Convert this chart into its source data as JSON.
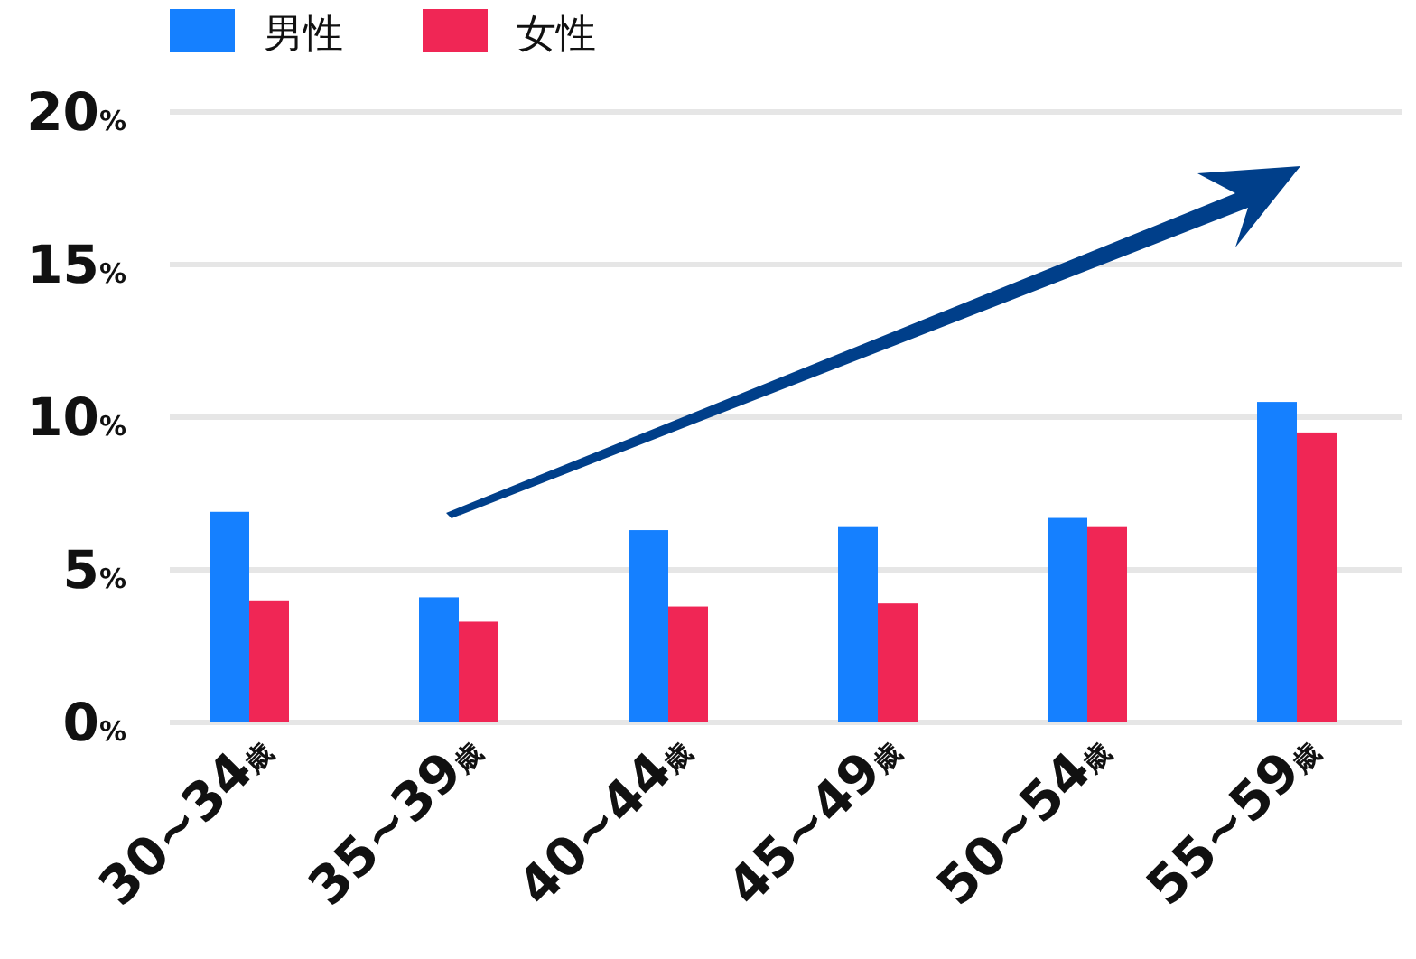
{
  "chart_data": {
    "type": "bar",
    "categories": [
      "30~34歳",
      "35~39歳",
      "40~44歳",
      "45~49歳",
      "50~54歳",
      "55~59歳"
    ],
    "series": [
      {
        "name": "男性",
        "color": "#1580ff",
        "values": [
          6.9,
          4.1,
          6.3,
          6.4,
          6.7,
          10.5
        ]
      },
      {
        "name": "女性",
        "color": "#f02655",
        "values": [
          4.0,
          3.3,
          3.8,
          3.9,
          6.4,
          9.5
        ]
      }
    ],
    "ylim": [
      0,
      20
    ],
    "yticks": [
      {
        "value": 0,
        "label": "0%"
      },
      {
        "value": 5,
        "label": "5%"
      },
      {
        "value": 10,
        "label": "10%"
      },
      {
        "value": 15,
        "label": "15%"
      },
      {
        "value": 20,
        "label": "20%"
      }
    ],
    "grid": "y",
    "legend": "top left"
  }
}
